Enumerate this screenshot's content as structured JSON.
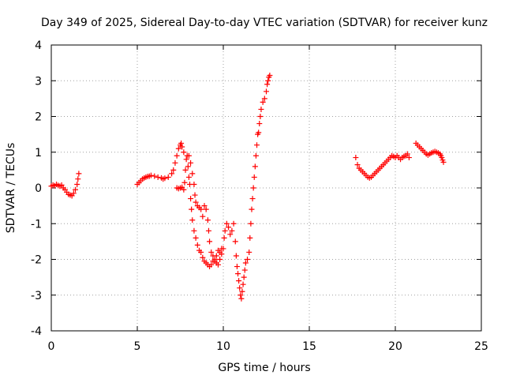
{
  "chart_data": {
    "type": "scatter",
    "title": "Day 349 of 2025, Sidereal Day-to-day VTEC variation (SDTVAR) for receiver kunz",
    "xlabel": "GPS time / hours",
    "ylabel": "SDTVAR / TECUs",
    "xlim": [
      0,
      25
    ],
    "ylim": [
      -4,
      4
    ],
    "xticks": [
      "0",
      "5",
      "10",
      "15",
      "20",
      "25"
    ],
    "yticks": [
      "4",
      "3",
      "2",
      "1",
      "0",
      "-1",
      "-2",
      "-3",
      "-4"
    ],
    "grid": true,
    "marker": "+",
    "color": "#ff0000",
    "series": [
      {
        "name": "SDTVAR",
        "segments": [
          [
            [
              0.0,
              0.05
            ],
            [
              0.1,
              0.08
            ],
            [
              0.2,
              0.06
            ],
            [
              0.3,
              0.1
            ],
            [
              0.4,
              0.07
            ],
            [
              0.5,
              0.05
            ],
            [
              0.6,
              0.08
            ],
            [
              0.7,
              0.0
            ],
            [
              0.8,
              -0.05
            ],
            [
              0.9,
              -0.12
            ],
            [
              1.0,
              -0.18
            ],
            [
              1.1,
              -0.2
            ],
            [
              1.2,
              -0.22
            ],
            [
              1.3,
              -0.15
            ],
            [
              1.4,
              -0.05
            ],
            [
              1.5,
              0.1
            ],
            [
              1.55,
              0.25
            ],
            [
              1.6,
              0.4
            ]
          ],
          [
            [
              5.0,
              0.1
            ],
            [
              5.1,
              0.15
            ],
            [
              5.2,
              0.2
            ],
            [
              5.3,
              0.25
            ],
            [
              5.4,
              0.28
            ],
            [
              5.5,
              0.3
            ],
            [
              5.6,
              0.32
            ],
            [
              5.7,
              0.33
            ],
            [
              5.8,
              0.35
            ],
            [
              6.0,
              0.33
            ],
            [
              6.2,
              0.3
            ],
            [
              6.4,
              0.28
            ],
            [
              6.5,
              0.25
            ],
            [
              6.6,
              0.27
            ],
            [
              6.8,
              0.3
            ],
            [
              7.0,
              0.4
            ],
            [
              7.1,
              0.5
            ],
            [
              7.2,
              0.7
            ],
            [
              7.3,
              0.9
            ],
            [
              7.4,
              1.1
            ],
            [
              7.5,
              1.2
            ],
            [
              7.55,
              1.25
            ],
            [
              7.6,
              1.15
            ],
            [
              7.7,
              1.0
            ]
          ],
          [
            [
              7.3,
              0.0
            ],
            [
              7.4,
              -0.02
            ],
            [
              7.5,
              0.0
            ],
            [
              7.6,
              0.02
            ],
            [
              7.7,
              -0.05
            ],
            [
              7.75,
              0.15
            ],
            [
              7.8,
              0.5
            ],
            [
              7.85,
              0.8
            ],
            [
              7.9,
              0.9
            ],
            [
              7.95,
              0.6
            ],
            [
              8.0,
              0.3
            ],
            [
              8.05,
              0.1
            ],
            [
              8.1,
              -0.3
            ],
            [
              8.15,
              -0.6
            ],
            [
              8.2,
              -0.9
            ],
            [
              8.3,
              -1.2
            ],
            [
              8.4,
              -1.4
            ],
            [
              8.5,
              -1.6
            ],
            [
              8.6,
              -1.75
            ],
            [
              8.7,
              -1.8
            ],
            [
              8.8,
              -1.95
            ],
            [
              8.9,
              -2.05
            ],
            [
              9.0,
              -2.1
            ],
            [
              9.1,
              -2.15
            ],
            [
              9.2,
              -2.2
            ],
            [
              9.3,
              -2.15
            ],
            [
              9.4,
              -2.05
            ],
            [
              9.5,
              -2.0
            ],
            [
              9.6,
              -1.9
            ],
            [
              9.7,
              -1.75
            ],
            [
              9.8,
              -1.8
            ],
            [
              9.9,
              -1.7
            ]
          ],
          [
            [
              8.0,
              0.9
            ],
            [
              8.1,
              0.7
            ],
            [
              8.2,
              0.4
            ],
            [
              8.3,
              0.1
            ],
            [
              8.35,
              -0.2
            ],
            [
              8.4,
              -0.4
            ],
            [
              8.5,
              -0.5
            ],
            [
              8.6,
              -0.55
            ],
            [
              8.7,
              -0.6
            ],
            [
              8.8,
              -0.8
            ],
            [
              8.9,
              -0.5
            ],
            [
              9.0,
              -0.6
            ],
            [
              9.1,
              -0.9
            ],
            [
              9.15,
              -1.2
            ],
            [
              9.2,
              -1.5
            ],
            [
              9.3,
              -1.8
            ],
            [
              9.4,
              -1.9
            ],
            [
              9.5,
              -2.05
            ],
            [
              9.6,
              -2.1
            ],
            [
              9.7,
              -2.15
            ],
            [
              9.8,
              -2.0
            ],
            [
              9.9,
              -1.85
            ],
            [
              10.0,
              -1.7
            ],
            [
              10.05,
              -1.4
            ]
          ],
          [
            [
              10.1,
              -1.2
            ],
            [
              10.2,
              -1.0
            ],
            [
              10.3,
              -1.1
            ],
            [
              10.4,
              -1.3
            ],
            [
              10.5,
              -1.2
            ],
            [
              10.6,
              -1.0
            ],
            [
              10.7,
              -1.5
            ],
            [
              10.75,
              -1.9
            ],
            [
              10.8,
              -2.2
            ],
            [
              10.85,
              -2.4
            ],
            [
              10.9,
              -2.6
            ],
            [
              10.95,
              -2.8
            ],
            [
              11.0,
              -3.0
            ],
            [
              11.05,
              -3.1
            ],
            [
              11.1,
              -2.9
            ],
            [
              11.15,
              -2.7
            ],
            [
              11.2,
              -2.5
            ],
            [
              11.25,
              -2.3
            ],
            [
              11.3,
              -2.1
            ],
            [
              11.4,
              -2.0
            ],
            [
              11.5,
              -1.8
            ],
            [
              11.55,
              -1.4
            ],
            [
              11.6,
              -1.0
            ],
            [
              11.65,
              -0.6
            ],
            [
              11.7,
              -0.3
            ],
            [
              11.75,
              0.0
            ],
            [
              11.8,
              0.3
            ],
            [
              11.85,
              0.6
            ],
            [
              11.9,
              0.9
            ],
            [
              11.95,
              1.2
            ],
            [
              12.0,
              1.5
            ],
            [
              12.05,
              1.55
            ],
            [
              12.1,
              1.8
            ],
            [
              12.15,
              2.0
            ],
            [
              12.2,
              2.2
            ],
            [
              12.3,
              2.4
            ],
            [
              12.4,
              2.5
            ],
            [
              12.5,
              2.7
            ],
            [
              12.55,
              2.9
            ],
            [
              12.6,
              3.0
            ],
            [
              12.65,
              3.1
            ],
            [
              12.7,
              3.15
            ]
          ],
          [
            [
              17.7,
              0.85
            ],
            [
              17.8,
              0.65
            ],
            [
              17.9,
              0.55
            ],
            [
              18.0,
              0.5
            ],
            [
              18.1,
              0.45
            ],
            [
              18.2,
              0.4
            ],
            [
              18.3,
              0.35
            ],
            [
              18.4,
              0.3
            ],
            [
              18.5,
              0.28
            ],
            [
              18.6,
              0.3
            ],
            [
              18.7,
              0.35
            ],
            [
              18.8,
              0.4
            ],
            [
              18.9,
              0.45
            ],
            [
              19.0,
              0.5
            ],
            [
              19.1,
              0.55
            ],
            [
              19.2,
              0.6
            ],
            [
              19.3,
              0.65
            ],
            [
              19.4,
              0.7
            ],
            [
              19.5,
              0.75
            ],
            [
              19.6,
              0.8
            ],
            [
              19.7,
              0.85
            ],
            [
              19.8,
              0.9
            ],
            [
              19.9,
              0.88
            ],
            [
              20.0,
              0.85
            ],
            [
              20.1,
              0.9
            ],
            [
              20.2,
              0.85
            ],
            [
              20.3,
              0.8
            ],
            [
              20.4,
              0.85
            ],
            [
              20.5,
              0.88
            ],
            [
              20.6,
              0.9
            ],
            [
              20.7,
              0.95
            ],
            [
              20.8,
              0.85
            ]
          ],
          [
            [
              21.2,
              1.25
            ],
            [
              21.3,
              1.2
            ],
            [
              21.4,
              1.15
            ],
            [
              21.5,
              1.1
            ],
            [
              21.6,
              1.05
            ],
            [
              21.7,
              1.0
            ],
            [
              21.8,
              0.95
            ],
            [
              21.9,
              0.92
            ],
            [
              22.0,
              0.95
            ],
            [
              22.1,
              0.98
            ],
            [
              22.2,
              1.0
            ],
            [
              22.3,
              1.02
            ],
            [
              22.4,
              1.0
            ],
            [
              22.5,
              0.98
            ],
            [
              22.6,
              0.95
            ],
            [
              22.65,
              0.9
            ],
            [
              22.7,
              0.85
            ],
            [
              22.75,
              0.78
            ],
            [
              22.8,
              0.72
            ]
          ]
        ]
      }
    ]
  }
}
